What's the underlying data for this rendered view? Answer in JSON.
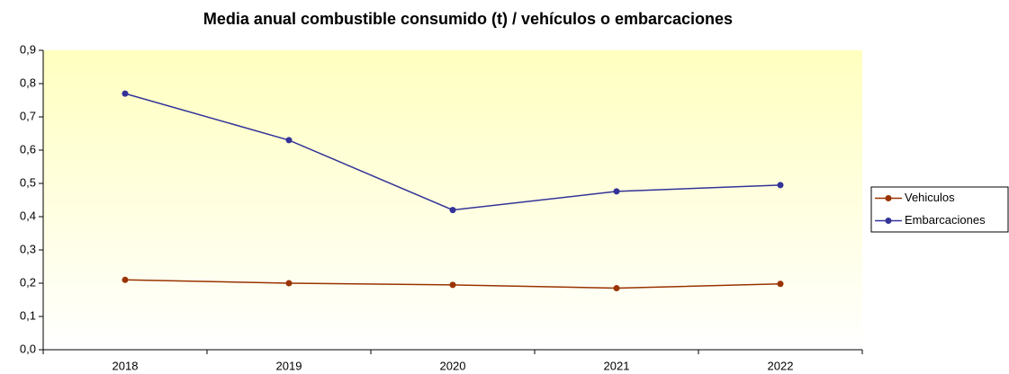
{
  "chart_data": {
    "type": "line",
    "title": "Media anual combustible consumido (t) / vehículos o embarcaciones",
    "categories": [
      "2018",
      "2019",
      "2020",
      "2021",
      "2022"
    ],
    "series": [
      {
        "name": "Vehiculos",
        "color": "#993300",
        "values": [
          0.21,
          0.2,
          0.195,
          0.185,
          0.198
        ]
      },
      {
        "name": "Embarcaciones",
        "color": "#333399",
        "values": [
          0.77,
          0.63,
          0.42,
          0.476,
          0.495
        ]
      }
    ],
    "ylim": [
      0,
      0.9
    ],
    "yticks": [
      {
        "value": 0,
        "label": "0,0"
      },
      {
        "value": 0.1,
        "label": "0,1"
      },
      {
        "value": 0.2,
        "label": "0,2"
      },
      {
        "value": 0.3,
        "label": "0,3"
      },
      {
        "value": 0.4,
        "label": "0,4"
      },
      {
        "value": 0.5,
        "label": "0,5"
      },
      {
        "value": 0.6,
        "label": "0,6"
      },
      {
        "value": 0.7,
        "label": "0,7"
      },
      {
        "value": 0.8,
        "label": "0,8"
      },
      {
        "value": 0.9,
        "label": "0,9"
      }
    ],
    "grid": false,
    "legend": "right"
  }
}
